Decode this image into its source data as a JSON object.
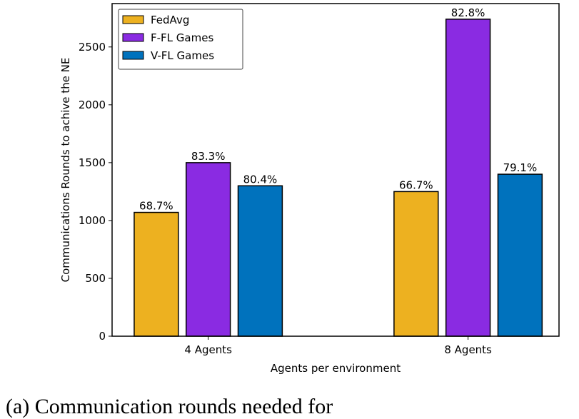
{
  "chart_data": {
    "type": "bar",
    "categories": [
      "4 Agents",
      "8 Agents"
    ],
    "series": [
      {
        "name": "FedAvg",
        "color": "#EDB120",
        "values": [
          1070,
          1250
        ],
        "labels": [
          "68.7%",
          "66.7%"
        ]
      },
      {
        "name": "F-FL Games",
        "color": "#8A2BE2",
        "values": [
          1500,
          2740
        ],
        "labels": [
          "83.3%",
          "82.8%"
        ]
      },
      {
        "name": "V-FL Games",
        "color": "#0072BD",
        "values": [
          1300,
          1400
        ],
        "labels": [
          "80.4%",
          "79.1%"
        ]
      }
    ],
    "xlabel": "Agents per environment",
    "ylabel": "Communications Rounds to achive the NE",
    "yticks": [
      0,
      500,
      1000,
      1500,
      2000,
      2500
    ],
    "ylim": [
      0,
      2875
    ],
    "grid": false,
    "legend": "top-left"
  },
  "caption": "(a) Communication rounds needed for"
}
